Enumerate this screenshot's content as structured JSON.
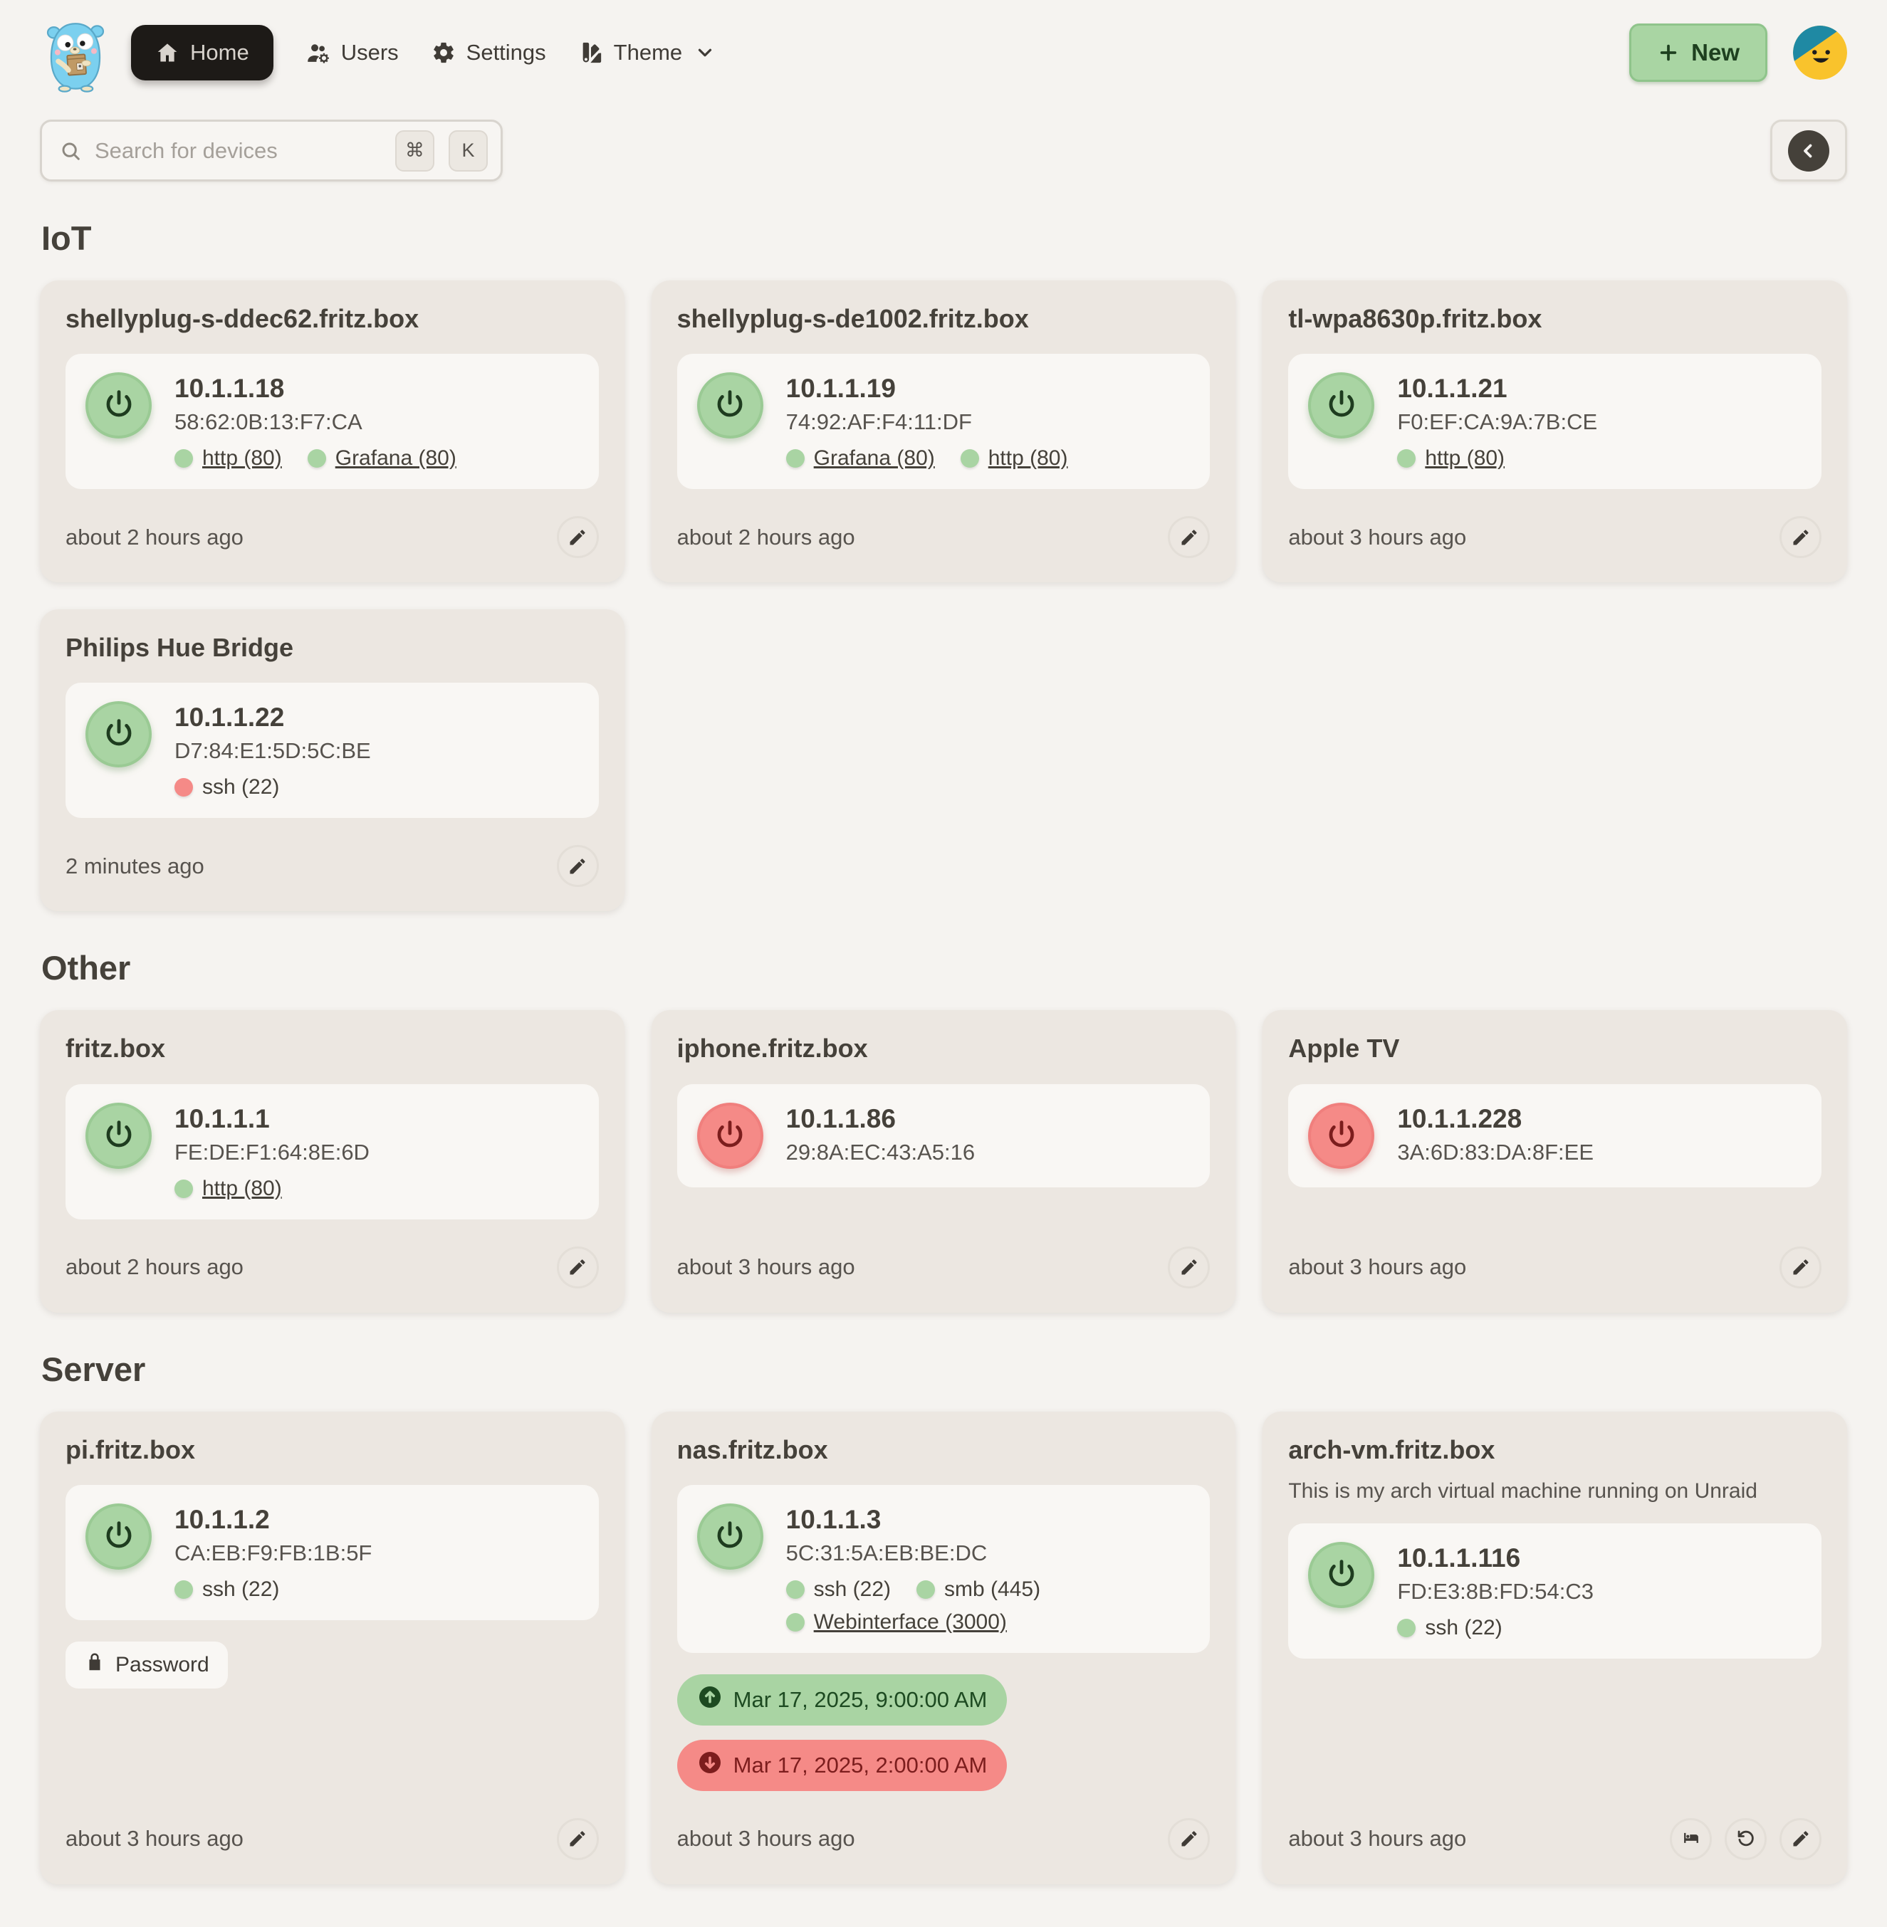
{
  "nav": {
    "home": "Home",
    "users": "Users",
    "settings": "Settings",
    "theme": "Theme",
    "new_label": "New"
  },
  "search": {
    "placeholder": "Search for devices",
    "kbd_meta": "⌘",
    "kbd_key": "K"
  },
  "colors": {
    "page_bg": "#f5f3f0",
    "card_bg": "#ece7e1",
    "panel_bg": "#f9f7f4",
    "online_green": "#a9d4a3",
    "offline_red": "#f58a87",
    "active_nav_bg": "#1d1a17"
  },
  "sections": [
    {
      "title": "IoT",
      "cards": [
        {
          "name": "shellyplug-s-ddec62.fritz.box",
          "description": "",
          "status": "online",
          "ip": "10.1.1.18",
          "mac": "58:62:0B:13:F7:CA",
          "ports": [
            {
              "label": "http (80)",
              "state": "open",
              "link": true
            },
            {
              "label": "Grafana (80)",
              "state": "open",
              "link": true
            }
          ],
          "password": "",
          "schedules": [],
          "updated": "about 2 hours ago",
          "actions": [
            "edit"
          ]
        },
        {
          "name": "shellyplug-s-de1002.fritz.box",
          "description": "",
          "status": "online",
          "ip": "10.1.1.19",
          "mac": "74:92:AF:F4:11:DF",
          "ports": [
            {
              "label": "Grafana (80)",
              "state": "open",
              "link": true
            },
            {
              "label": "http (80)",
              "state": "open",
              "link": true
            }
          ],
          "password": "",
          "schedules": [],
          "updated": "about 2 hours ago",
          "actions": [
            "edit"
          ]
        },
        {
          "name": "tl-wpa8630p.fritz.box",
          "description": "",
          "status": "online",
          "ip": "10.1.1.21",
          "mac": "F0:EF:CA:9A:7B:CE",
          "ports": [
            {
              "label": "http (80)",
              "state": "open",
              "link": true
            }
          ],
          "password": "",
          "schedules": [],
          "updated": "about 3 hours ago",
          "actions": [
            "edit"
          ]
        },
        {
          "name": "Philips Hue Bridge",
          "description": "",
          "status": "online",
          "ip": "10.1.1.22",
          "mac": "D7:84:E1:5D:5C:BE",
          "ports": [
            {
              "label": "ssh (22)",
              "state": "closed",
              "link": false
            }
          ],
          "password": "",
          "schedules": [],
          "updated": "2 minutes ago",
          "actions": [
            "edit"
          ]
        }
      ]
    },
    {
      "title": "Other",
      "cards": [
        {
          "name": "fritz.box",
          "description": "",
          "status": "online",
          "ip": "10.1.1.1",
          "mac": "FE:DE:F1:64:8E:6D",
          "ports": [
            {
              "label": "http (80)",
              "state": "open",
              "link": true
            }
          ],
          "password": "",
          "schedules": [],
          "updated": "about 2 hours ago",
          "actions": [
            "edit"
          ]
        },
        {
          "name": "iphone.fritz.box",
          "description": "",
          "status": "offline",
          "ip": "10.1.1.86",
          "mac": "29:8A:EC:43:A5:16",
          "ports": [],
          "password": "",
          "schedules": [],
          "updated": "about 3 hours ago",
          "actions": [
            "edit"
          ]
        },
        {
          "name": "Apple TV",
          "description": "",
          "status": "offline",
          "ip": "10.1.1.228",
          "mac": "3A:6D:83:DA:8F:EE",
          "ports": [],
          "password": "",
          "schedules": [],
          "updated": "about 3 hours ago",
          "actions": [
            "edit"
          ]
        }
      ]
    },
    {
      "title": "Server",
      "cards": [
        {
          "name": "pi.fritz.box",
          "description": "",
          "status": "online",
          "ip": "10.1.1.2",
          "mac": "CA:EB:F9:FB:1B:5F",
          "ports": [
            {
              "label": "ssh (22)",
              "state": "open",
              "link": false
            }
          ],
          "password": "Password",
          "schedules": [],
          "updated": "about 3 hours ago",
          "actions": [
            "edit"
          ]
        },
        {
          "name": "nas.fritz.box",
          "description": "",
          "status": "online",
          "ip": "10.1.1.3",
          "mac": "5C:31:5A:EB:BE:DC",
          "ports": [
            {
              "label": "ssh (22)",
              "state": "open",
              "link": false
            },
            {
              "label": "smb (445)",
              "state": "open",
              "link": false
            },
            {
              "label": "Webinterface (3000)",
              "state": "open",
              "link": true
            }
          ],
          "password": "",
          "schedules": [
            {
              "type": "up",
              "label": "Mar 17, 2025, 9:00:00 AM"
            },
            {
              "type": "down",
              "label": "Mar 17, 2025, 2:00:00 AM"
            }
          ],
          "updated": "about 3 hours ago",
          "actions": [
            "edit"
          ]
        },
        {
          "name": "arch-vm.fritz.box",
          "description": "This is my arch virtual machine running on Unraid",
          "status": "online",
          "ip": "10.1.1.116",
          "mac": "FD:E3:8B:FD:54:C3",
          "ports": [
            {
              "label": "ssh (22)",
              "state": "open",
              "link": false
            }
          ],
          "password": "",
          "schedules": [],
          "updated": "about 3 hours ago",
          "actions": [
            "sleep",
            "restart",
            "edit"
          ]
        }
      ]
    }
  ]
}
